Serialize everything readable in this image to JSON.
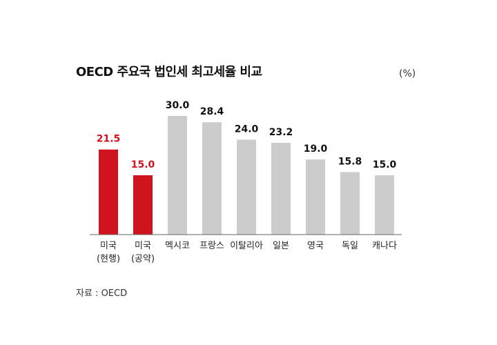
{
  "chart_data": {
    "type": "bar",
    "title": "OECD 주요국 법인세 최고세율 비교",
    "unit_label": "(%)",
    "source": "자료 : OECD",
    "categories": [
      [
        "미국",
        "(현행)"
      ],
      [
        "미국",
        "(공약)"
      ],
      [
        "멕시코"
      ],
      [
        "프랑스"
      ],
      [
        "이탈리아"
      ],
      [
        "일본"
      ],
      [
        "영국"
      ],
      [
        "독일"
      ],
      [
        "캐나다"
      ]
    ],
    "values": [
      21.5,
      15.0,
      30.0,
      28.4,
      24.0,
      23.2,
      19.0,
      15.8,
      15.0
    ],
    "value_labels": [
      "21.5",
      "15.0",
      "30.0",
      "28.4",
      "24.0",
      "23.2",
      "19.0",
      "15.8",
      "15.0"
    ],
    "highlight": [
      true,
      true,
      false,
      false,
      false,
      false,
      false,
      false,
      false
    ],
    "ylim": [
      0,
      30
    ],
    "grid": false
  },
  "colors": {
    "highlight": "#d0141f",
    "default": "#cccccc",
    "axis": "#666666",
    "highlight_label": "#d0141f",
    "default_label": "#111111"
  }
}
